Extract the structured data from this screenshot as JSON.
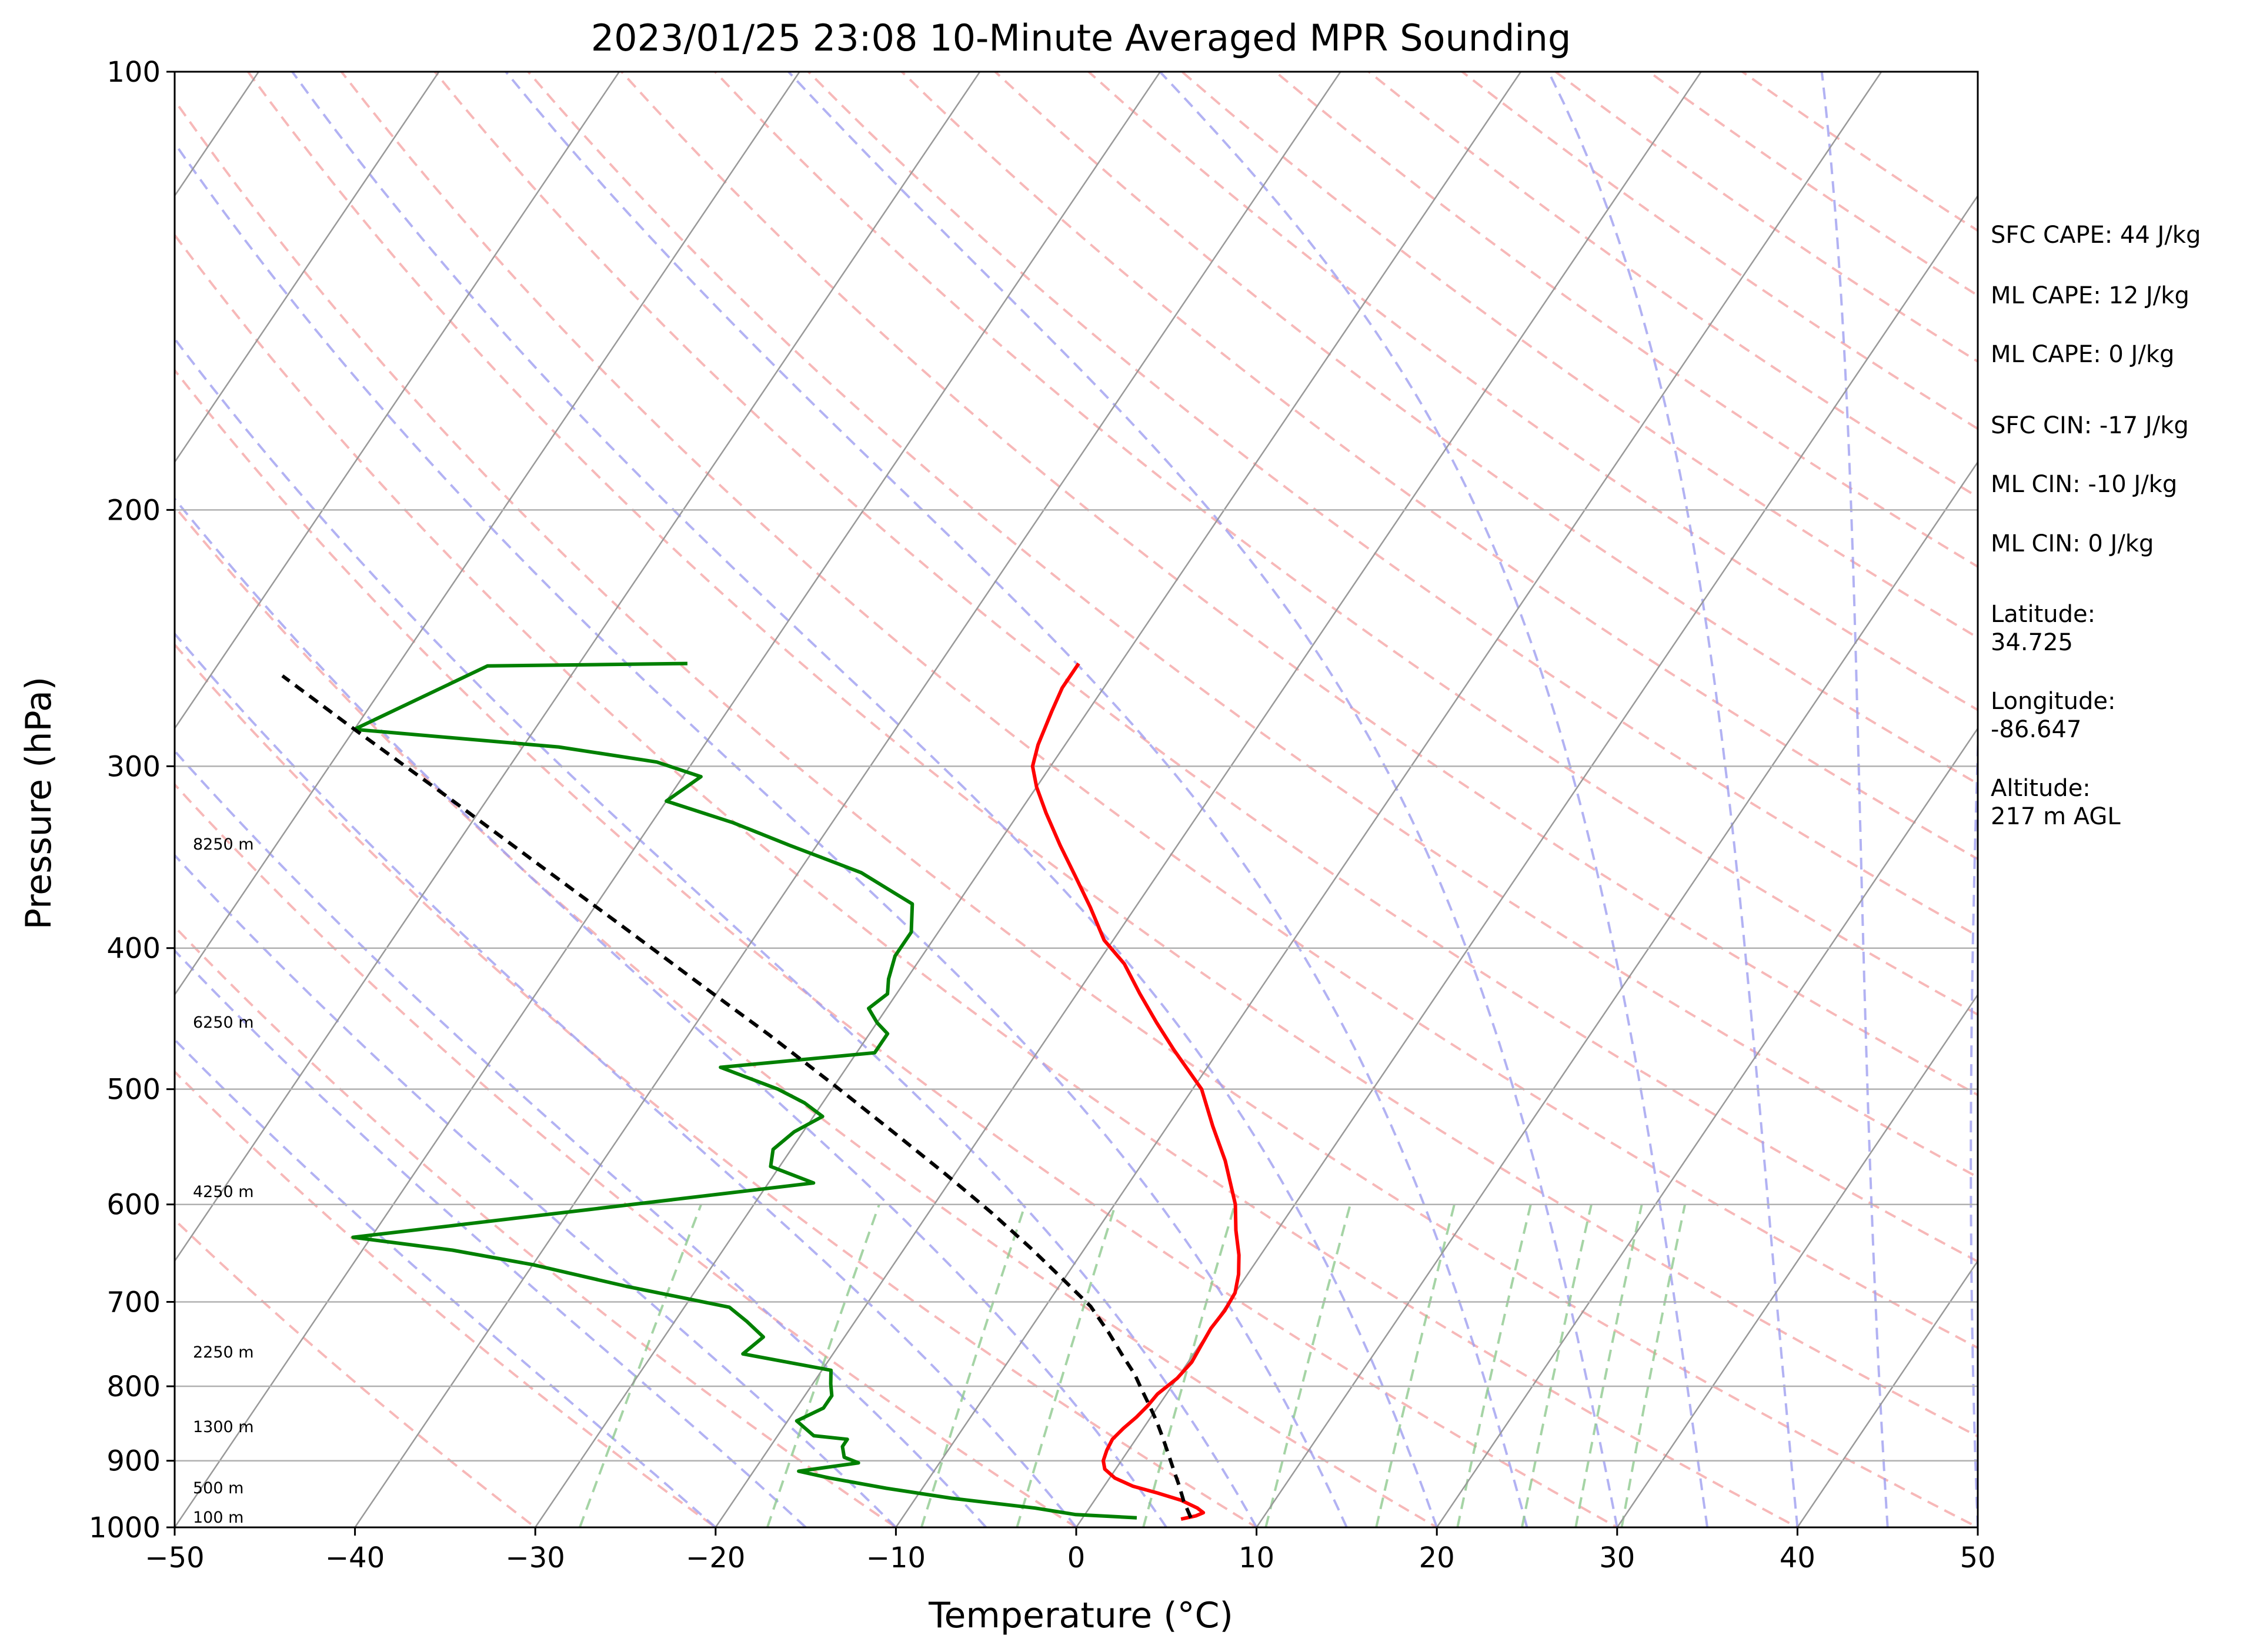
{
  "chart_data": {
    "type": "skew-t",
    "title": "2023/01/25 23:08 10-Minute Averaged MPR Sounding",
    "xlabel": "Temperature (°C)",
    "ylabel": "Pressure (hPa)",
    "xlim": [
      -50,
      50
    ],
    "ylim": [
      1000,
      100
    ],
    "y_scale": "log",
    "grid": true,
    "x_ticks": [
      "−50",
      "−40",
      "−30",
      "−20",
      "−10",
      "0",
      "10",
      "20",
      "30",
      "40",
      "50"
    ],
    "y_ticks": [
      "1000",
      "900",
      "800",
      "700",
      "600",
      "500",
      "400",
      "300",
      "200",
      "100"
    ],
    "height_labels": [
      "100 m",
      "500 m",
      "1300 m",
      "2250 m",
      "4250 m",
      "6250 m",
      "8250 m"
    ],
    "side_info": [
      "SFC CAPE: 44 J/kg",
      "ML CAPE: 12 J/kg",
      "ML CAPE: 0 J/kg",
      "SFC CIN: -17 J/kg",
      "ML CIN: -10 J/kg",
      "ML CIN: 0 J/kg",
      "Latitude:",
      "34.725",
      "Longitude:",
      "-86.647",
      "Altitude:",
      "217 m AGL"
    ],
    "colors": {
      "temperature": "#ff0000",
      "dewpoint": "#008000",
      "parcel": "#000000",
      "dry_adiabats": "#f4a0a0",
      "moist_adiabats": "#9f9ff0",
      "mixing_ratio": "#8fc98f",
      "isotherms": "#999999"
    },
    "series": [
      {
        "name": "temperature",
        "points": [
          [
            5.5,
            987
          ],
          [
            6.2,
            982
          ],
          [
            6.5,
            977
          ],
          [
            6.0,
            970
          ],
          [
            4.8,
            958
          ],
          [
            3.2,
            947
          ],
          [
            1.6,
            937
          ],
          [
            0.3,
            925
          ],
          [
            -0.6,
            912
          ],
          [
            -1.0,
            900
          ],
          [
            -1.2,
            885
          ],
          [
            -1.3,
            870
          ],
          [
            -1.1,
            855
          ],
          [
            -0.8,
            840
          ],
          [
            -0.6,
            825
          ],
          [
            -0.5,
            810
          ],
          [
            0.0,
            790
          ],
          [
            0.2,
            770
          ],
          [
            0.1,
            750
          ],
          [
            0.0,
            730
          ],
          [
            0.1,
            710
          ],
          [
            0.0,
            690
          ],
          [
            -0.5,
            670
          ],
          [
            -1.2,
            650
          ],
          [
            -2.3,
            625
          ],
          [
            -3.3,
            600
          ],
          [
            -5.5,
            560
          ],
          [
            -7.5,
            530
          ],
          [
            -9.5,
            500
          ],
          [
            -12.5,
            470
          ],
          [
            -14.5,
            450
          ],
          [
            -16.5,
            430
          ],
          [
            -18.5,
            410
          ],
          [
            -20.5,
            395
          ],
          [
            -22.5,
            375
          ],
          [
            -24.5,
            357
          ],
          [
            -26.5,
            340
          ],
          [
            -28.5,
            323
          ],
          [
            -30.0,
            310
          ],
          [
            -31.0,
            300
          ],
          [
            -31.5,
            290
          ],
          [
            -32.0,
            275
          ],
          [
            -32.3,
            265
          ],
          [
            -32.3,
            255
          ]
        ]
      },
      {
        "name": "dewpoint",
        "points": [
          [
            3.0,
            985
          ],
          [
            -0.5,
            980
          ],
          [
            -3.0,
            970
          ],
          [
            -8.0,
            955
          ],
          [
            -12.0,
            940
          ],
          [
            -15.5,
            925
          ],
          [
            -17.5,
            915
          ],
          [
            -14.5,
            903
          ],
          [
            -15.5,
            895
          ],
          [
            -16.0,
            880
          ],
          [
            -16.0,
            870
          ],
          [
            -18.0,
            865
          ],
          [
            -19.5,
            845
          ],
          [
            -18.5,
            828
          ],
          [
            -18.5,
            812
          ],
          [
            -19.0,
            797
          ],
          [
            -19.5,
            780
          ],
          [
            -25.0,
            760
          ],
          [
            -24.5,
            740
          ],
          [
            -26.0,
            722
          ],
          [
            -27.5,
            706
          ],
          [
            -34.0,
            683
          ],
          [
            -40.0,
            660
          ],
          [
            -45.0,
            645
          ],
          [
            -51.0,
            632
          ],
          [
            -39.0,
            605
          ],
          [
            -27.5,
            580
          ],
          [
            -30.5,
            565
          ],
          [
            -31.0,
            550
          ],
          [
            -30.5,
            535
          ],
          [
            -29.5,
            522
          ],
          [
            -31.0,
            511
          ],
          [
            -33.0,
            500
          ],
          [
            -37.0,
            483
          ],
          [
            -29.0,
            472
          ],
          [
            -29.0,
            458
          ],
          [
            -30.0,
            450
          ],
          [
            -31.0,
            440
          ],
          [
            -30.5,
            430
          ],
          [
            -31.0,
            420
          ],
          [
            -31.5,
            405
          ],
          [
            -31.5,
            390
          ],
          [
            -32.5,
            373
          ],
          [
            -36.5,
            355
          ],
          [
            -41.5,
            340
          ],
          [
            -45.5,
            328
          ],
          [
            -50.0,
            317
          ],
          [
            -49.0,
            305
          ],
          [
            -52.0,
            298
          ],
          [
            -58.0,
            291
          ],
          [
            -70.0,
            283
          ],
          [
            -65.0,
            256
          ],
          [
            -54.0,
            255
          ]
        ]
      },
      {
        "name": "parcel",
        "points": [
          [
            6.0,
            985
          ],
          [
            5.0,
            960
          ],
          [
            4.1,
            935
          ],
          [
            3.2,
            912
          ],
          [
            2.3,
            889
          ],
          [
            1.4,
            867
          ],
          [
            0.5,
            846
          ],
          [
            -0.5,
            825
          ],
          [
            -1.5,
            805
          ],
          [
            -2.5,
            785
          ],
          [
            -4.0,
            760
          ],
          [
            -5.5,
            735
          ],
          [
            -7.5,
            705
          ],
          [
            -10.0,
            676
          ],
          [
            -13.0,
            643
          ],
          [
            -16.5,
            608
          ],
          [
            -20.5,
            572
          ],
          [
            -25.0,
            535
          ],
          [
            -30.0,
            497
          ],
          [
            -35.5,
            459
          ],
          [
            -41.5,
            422
          ],
          [
            -48.0,
            385
          ],
          [
            -55.0,
            349
          ],
          [
            -62.5,
            314
          ],
          [
            -70.5,
            281
          ],
          [
            -76.0,
            260
          ]
        ]
      }
    ]
  }
}
